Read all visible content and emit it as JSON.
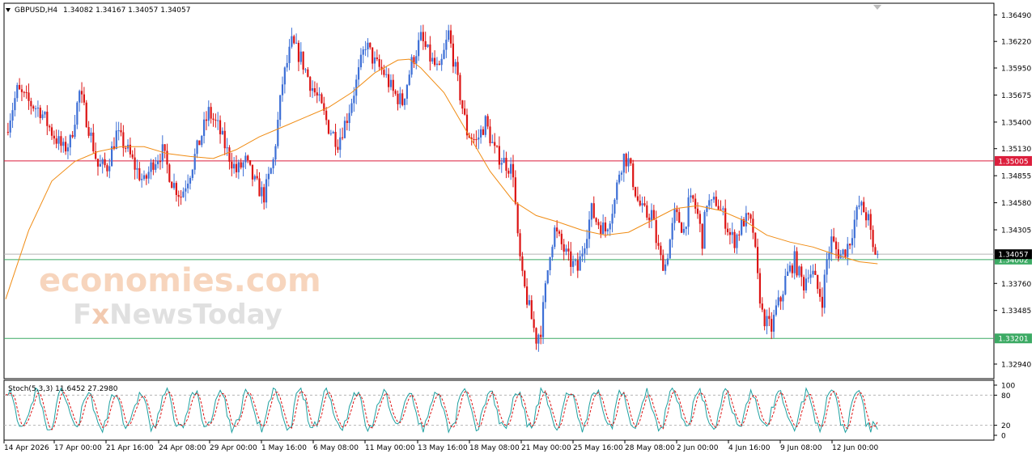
{
  "header": {
    "symbol": "GBPUSD,H4",
    "ohlc": "1.34082 1.34167 1.34057 1.34057"
  },
  "stoch_header": "Stoch(5,3,3) 11.6452 27.2980",
  "watermark": {
    "line1": "economies.com",
    "line2_a": "F",
    "line2_b": "x",
    "line2_c": "NewsToday"
  },
  "colors": {
    "bull": "#3d6fd6",
    "bear": "#dc1414",
    "ma": "#f08c14",
    "resistance": "#dc1e3c",
    "support": "#3caa64",
    "stoch_main": "#1ea0a0",
    "stoch_signal": "#dc1414"
  },
  "chart_data": {
    "type": "candlestick",
    "symbol": "GBPUSD",
    "timeframe": "H4",
    "ylim": [
      1.328,
      1.366
    ],
    "y_ticks": [
      "1.36490",
      "1.36220",
      "1.35950",
      "1.35675",
      "1.35400",
      "1.35130",
      "1.34855",
      "1.34580",
      "1.34305",
      "1.33760",
      "1.33485",
      "1.32940"
    ],
    "x_labels": [
      "14 Apr 2026",
      "17 Apr 00:00",
      "21 Apr 16:00",
      "24 Apr 08:00",
      "29 Apr 00:00",
      "1 May 16:00",
      "6 May 08:00",
      "11 May 00:00",
      "13 May 16:00",
      "18 May 08:00",
      "21 May 00:00",
      "25 May 16:00",
      "28 May 08:00",
      "2 Jun 00:00",
      "4 Jun 16:00",
      "9 Jun 08:00",
      "12 Jun 00:00"
    ],
    "levels": [
      {
        "value": 1.35005,
        "label": "1.35005",
        "kind": "resistance"
      },
      {
        "value": 1.34002,
        "label": "1.34002",
        "kind": "support"
      },
      {
        "value": 1.33201,
        "label": "1.33201",
        "kind": "support"
      }
    ],
    "current_price": {
      "value": 1.34057,
      "label": "1.34057"
    },
    "close_path": [
      [
        0,
        1.353
      ],
      [
        5,
        1.3572
      ],
      [
        10,
        1.356
      ],
      [
        15,
        1.3552
      ],
      [
        20,
        1.353
      ],
      [
        25,
        1.3512
      ],
      [
        28,
        1.352
      ],
      [
        32,
        1.357
      ],
      [
        36,
        1.3535
      ],
      [
        40,
        1.3495
      ],
      [
        44,
        1.3495
      ],
      [
        48,
        1.3528
      ],
      [
        52,
        1.3515
      ],
      [
        56,
        1.3495
      ],
      [
        60,
        1.3478
      ],
      [
        64,
        1.35
      ],
      [
        68,
        1.351
      ],
      [
        72,
        1.348
      ],
      [
        76,
        1.3465
      ],
      [
        80,
        1.349
      ],
      [
        84,
        1.352
      ],
      [
        88,
        1.355
      ],
      [
        92,
        1.3535
      ],
      [
        96,
        1.351
      ],
      [
        100,
        1.349
      ],
      [
        104,
        1.35
      ],
      [
        108,
        1.3478
      ],
      [
        112,
        1.3465
      ],
      [
        116,
        1.35
      ],
      [
        120,
        1.358
      ],
      [
        124,
        1.362
      ],
      [
        128,
        1.3605
      ],
      [
        132,
        1.358
      ],
      [
        136,
        1.356
      ],
      [
        140,
        1.3535
      ],
      [
        144,
        1.352
      ],
      [
        148,
        1.3545
      ],
      [
        152,
        1.358
      ],
      [
        156,
        1.362
      ],
      [
        160,
        1.36
      ],
      [
        164,
        1.359
      ],
      [
        168,
        1.357
      ],
      [
        172,
        1.356
      ],
      [
        176,
        1.36
      ],
      [
        180,
        1.3625
      ],
      [
        184,
        1.3605
      ],
      [
        188,
        1.359
      ],
      [
        192,
        1.363
      ],
      [
        196,
        1.358
      ],
      [
        200,
        1.353
      ],
      [
        204,
        1.352
      ],
      [
        208,
        1.354
      ],
      [
        212,
        1.351
      ],
      [
        216,
        1.35
      ],
      [
        220,
        1.349
      ],
      [
        222,
        1.342
      ],
      [
        224,
        1.338
      ],
      [
        226,
        1.336
      ],
      [
        228,
        1.334
      ],
      [
        230,
        1.332
      ],
      [
        232,
        1.333
      ],
      [
        234,
        1.337
      ],
      [
        236,
        1.341
      ],
      [
        238,
        1.343
      ],
      [
        240,
        1.342
      ],
      [
        242,
        1.341
      ],
      [
        244,
        1.34
      ],
      [
        246,
        1.3395
      ],
      [
        248,
        1.339
      ],
      [
        250,
        1.341
      ],
      [
        252,
        1.343
      ],
      [
        254,
        1.345
      ],
      [
        256,
        1.344
      ],
      [
        258,
        1.3435
      ],
      [
        260,
        1.343
      ],
      [
        262,
        1.3445
      ],
      [
        264,
        1.346
      ],
      [
        266,
        1.349
      ],
      [
        268,
        1.3505
      ],
      [
        270,
        1.35
      ],
      [
        272,
        1.348
      ],
      [
        274,
        1.346
      ],
      [
        276,
        1.345
      ],
      [
        278,
        1.3445
      ],
      [
        280,
        1.3448
      ],
      [
        282,
        1.342
      ],
      [
        284,
        1.34
      ],
      [
        286,
        1.3395
      ],
      [
        288,
        1.342
      ],
      [
        290,
        1.3445
      ],
      [
        292,
        1.344
      ],
      [
        294,
        1.343
      ],
      [
        296,
        1.3455
      ],
      [
        298,
        1.346
      ],
      [
        300,
        1.3445
      ],
      [
        302,
        1.342
      ],
      [
        304,
        1.346
      ],
      [
        306,
        1.3455
      ],
      [
        308,
        1.346
      ],
      [
        310,
        1.345
      ],
      [
        312,
        1.344
      ],
      [
        314,
        1.3425
      ],
      [
        316,
        1.342
      ],
      [
        318,
        1.343
      ],
      [
        320,
        1.344
      ],
      [
        322,
        1.344
      ],
      [
        324,
        1.343
      ],
      [
        326,
        1.338
      ],
      [
        328,
        1.3345
      ],
      [
        330,
        1.3335
      ],
      [
        332,
        1.333
      ],
      [
        334,
        1.335
      ],
      [
        336,
        1.336
      ],
      [
        338,
        1.338
      ],
      [
        340,
        1.339
      ],
      [
        342,
        1.34
      ],
      [
        344,
        1.3385
      ],
      [
        346,
        1.3375
      ],
      [
        348,
        1.339
      ],
      [
        350,
        1.3385
      ],
      [
        352,
        1.337
      ],
      [
        354,
        1.336
      ],
      [
        356,
        1.34
      ],
      [
        358,
        1.342
      ],
      [
        360,
        1.341
      ],
      [
        362,
        1.3405
      ],
      [
        364,
        1.341
      ],
      [
        366,
        1.342
      ],
      [
        368,
        1.344
      ],
      [
        370,
        1.3455
      ],
      [
        372,
        1.345
      ],
      [
        374,
        1.344
      ],
      [
        376,
        1.341
      ],
      [
        378,
        1.3406
      ]
    ],
    "moving_average": [
      [
        0,
        1.336
      ],
      [
        10,
        1.343
      ],
      [
        20,
        1.348
      ],
      [
        30,
        1.35
      ],
      [
        40,
        1.351
      ],
      [
        50,
        1.3515
      ],
      [
        60,
        1.3515
      ],
      [
        70,
        1.3508
      ],
      [
        80,
        1.3505
      ],
      [
        90,
        1.3503
      ],
      [
        100,
        1.3512
      ],
      [
        110,
        1.3525
      ],
      [
        120,
        1.3535
      ],
      [
        130,
        1.3545
      ],
      [
        140,
        1.3555
      ],
      [
        150,
        1.357
      ],
      [
        160,
        1.359
      ],
      [
        170,
        1.3603
      ],
      [
        175,
        1.3604
      ],
      [
        180,
        1.3595
      ],
      [
        190,
        1.357
      ],
      [
        200,
        1.353
      ],
      [
        210,
        1.349
      ],
      [
        220,
        1.346
      ],
      [
        230,
        1.3445
      ],
      [
        240,
        1.3438
      ],
      [
        250,
        1.343
      ],
      [
        260,
        1.3425
      ],
      [
        270,
        1.3428
      ],
      [
        280,
        1.344
      ],
      [
        290,
        1.3452
      ],
      [
        300,
        1.3455
      ],
      [
        310,
        1.345
      ],
      [
        320,
        1.344
      ],
      [
        330,
        1.3425
      ],
      [
        340,
        1.3418
      ],
      [
        350,
        1.3413
      ],
      [
        360,
        1.3405
      ],
      [
        370,
        1.3398
      ],
      [
        378,
        1.3396
      ]
    ],
    "stochastic": {
      "k": 11.6452,
      "d": 27.298,
      "levels": [
        80,
        20
      ],
      "axis_labels": [
        "100",
        "80",
        "20",
        "0"
      ]
    }
  }
}
